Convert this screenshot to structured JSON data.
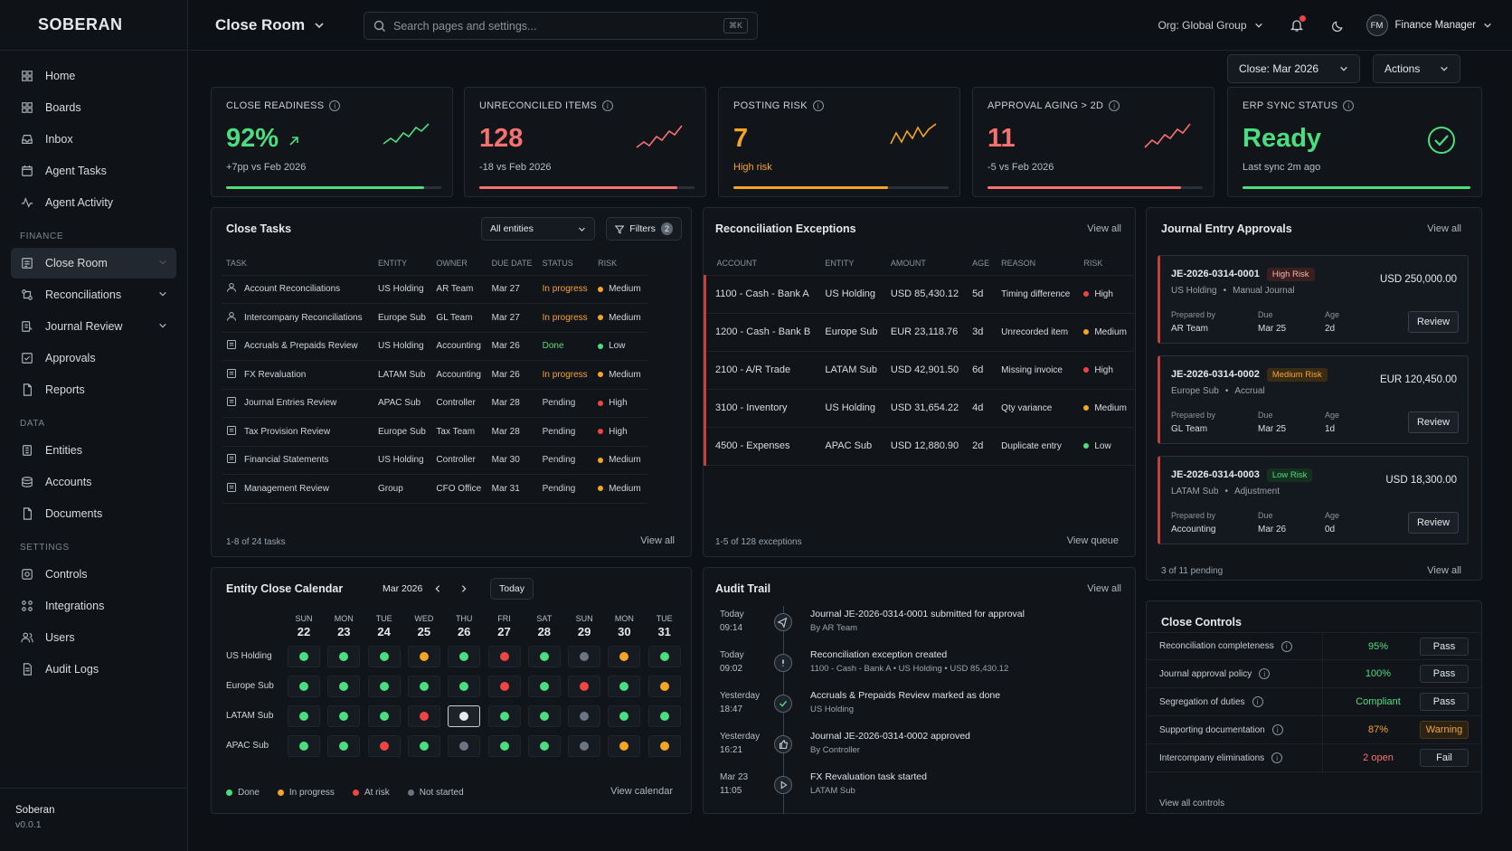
{
  "brand": {
    "name": "SOBERAN",
    "footer_name": "Soberan",
    "version": "v0.0.1"
  },
  "nav": {
    "main": [
      {
        "label": "Home",
        "icon": "grid-icon"
      },
      {
        "label": "Boards",
        "icon": "grid-icon"
      },
      {
        "label": "Inbox",
        "icon": "inbox-icon"
      },
      {
        "label": "Agent Tasks",
        "icon": "calendar-icon"
      },
      {
        "label": "Agent Activity",
        "icon": "activity-icon"
      }
    ],
    "finance_label": "FINANCE",
    "finance": [
      {
        "label": "Close Room"
      },
      {
        "label": "Reconciliations"
      },
      {
        "label": "Journal Review"
      },
      {
        "label": "Approvals"
      },
      {
        "label": "Reports"
      }
    ],
    "data_label": "DATA",
    "data": [
      {
        "label": "Entities"
      },
      {
        "label": "Accounts"
      },
      {
        "label": "Documents"
      }
    ],
    "settings_label": "SETTINGS",
    "settings": [
      {
        "label": "Controls"
      },
      {
        "label": "Integrations"
      },
      {
        "label": "Users"
      },
      {
        "label": "Audit Logs"
      }
    ]
  },
  "header": {
    "title": "Close Room",
    "search_placeholder": "Search pages and settings...",
    "search_kbd": "⌘K",
    "org": "Org: Global Group",
    "user_initials": "FM",
    "user_role": "Finance Manager"
  },
  "toolbar": {
    "close_period": "Close: Mar 2026",
    "actions": "Actions"
  },
  "kpis": [
    {
      "title": "CLOSE READINESS",
      "value": "92%",
      "sub": "+7pp vs Feb 2026",
      "color": "#4ade80",
      "fill": 0.92
    },
    {
      "title": "UNRECONCILED ITEMS",
      "value": "128",
      "sub": "-18 vs Feb 2026",
      "color": "#f87171",
      "fill": 0.92
    },
    {
      "title": "POSTING RISK",
      "value": "7",
      "sub": "High risk",
      "color": "#f5a524",
      "fill": 0.72
    },
    {
      "title": "APPROVAL AGING > 2D",
      "value": "11",
      "sub": "-5 vs Feb 2026",
      "color": "#f87171",
      "fill": 0.9
    },
    {
      "title": "ERP SYNC STATUS",
      "value": "Ready",
      "sub": "Last sync 2m ago",
      "color": "#4ade80",
      "fill": 1.0
    }
  ],
  "tasks": {
    "title": "Close Tasks",
    "entity_filter": "All entities",
    "filters_label": "Filters",
    "filters_count": "2",
    "columns": [
      "TASK",
      "ENTITY",
      "OWNER",
      "DUE DATE",
      "STATUS",
      "RISK"
    ],
    "rows": [
      {
        "task": "Account Reconciliations",
        "entity": "US Holding",
        "owner": "AR Team",
        "due": "Mar 27",
        "status": "In progress",
        "risk": "Medium"
      },
      {
        "task": "Intercompany Reconciliations",
        "entity": "Europe Sub",
        "owner": "GL Team",
        "due": "Mar 27",
        "status": "In progress",
        "risk": "Medium"
      },
      {
        "task": "Accruals & Prepaids Review",
        "entity": "US Holding",
        "owner": "Accounting",
        "due": "Mar 26",
        "status": "Done",
        "risk": "Low"
      },
      {
        "task": "FX Revaluation",
        "entity": "LATAM Sub",
        "owner": "Accounting",
        "due": "Mar 26",
        "status": "In progress",
        "risk": "Medium"
      },
      {
        "task": "Journal Entries Review",
        "entity": "APAC Sub",
        "owner": "Controller",
        "due": "Mar 28",
        "status": "Pending",
        "risk": "High"
      },
      {
        "task": "Tax Provision Review",
        "entity": "Europe Sub",
        "owner": "Tax Team",
        "due": "Mar 28",
        "status": "Pending",
        "risk": "High"
      },
      {
        "task": "Financial Statements",
        "entity": "US Holding",
        "owner": "Controller",
        "due": "Mar 30",
        "status": "Pending",
        "risk": "Medium"
      },
      {
        "task": "Management Review",
        "entity": "Group",
        "owner": "CFO Office",
        "due": "Mar 31",
        "status": "Pending",
        "risk": "Medium"
      }
    ],
    "footer": "1-8 of 24 tasks",
    "view_all": "View all"
  },
  "recon": {
    "title": "Reconciliation Exceptions",
    "view_all": "View all",
    "columns": [
      "ACCOUNT",
      "ENTITY",
      "AMOUNT",
      "AGE",
      "REASON",
      "RISK"
    ],
    "rows": [
      {
        "account": "1100 - Cash - Bank A",
        "entity": "US Holding",
        "amount": "USD 85,430.12",
        "age": "5d",
        "reason": "Timing difference",
        "risk": "High"
      },
      {
        "account": "1200 - Cash - Bank B",
        "entity": "Europe Sub",
        "amount": "EUR 23,118.76",
        "age": "3d",
        "reason": "Unrecorded item",
        "risk": "Medium"
      },
      {
        "account": "2100 - A/R Trade",
        "entity": "LATAM Sub",
        "amount": "USD 42,901.50",
        "age": "6d",
        "reason": "Missing invoice",
        "risk": "High"
      },
      {
        "account": "3100 - Inventory",
        "entity": "US Holding",
        "amount": "USD 31,654.22",
        "age": "4d",
        "reason": "Qty variance",
        "risk": "Medium"
      },
      {
        "account": "4500 - Expenses",
        "entity": "APAC Sub",
        "amount": "USD 12,880.90",
        "age": "2d",
        "reason": "Duplicate entry",
        "risk": "Low"
      }
    ],
    "footer": "1-5 of 128 exceptions",
    "view_queue": "View queue"
  },
  "journal": {
    "title": "Journal Entry Approvals",
    "view_all": "View all",
    "entries": [
      {
        "id": "JE-2026-0314-0001",
        "badge": "High Risk",
        "amount": "USD 250,000.00",
        "entity": "US Holding",
        "type": "Manual Journal",
        "prepared_label": "Prepared by",
        "prepared": "AR Team",
        "due_label": "Due",
        "due": "Mar 25",
        "age_label": "Age",
        "age": "2d",
        "action": "Review"
      },
      {
        "id": "JE-2026-0314-0002",
        "badge": "Medium Risk",
        "amount": "EUR 120,450.00",
        "entity": "Europe Sub",
        "type": "Accrual",
        "prepared_label": "Prepared by",
        "prepared": "GL Team",
        "due_label": "Due",
        "due": "Mar 25",
        "age_label": "Age",
        "age": "1d",
        "action": "Review"
      },
      {
        "id": "JE-2026-0314-0003",
        "badge": "Low Risk",
        "amount": "USD 18,300.00",
        "entity": "LATAM Sub",
        "type": "Adjustment",
        "prepared_label": "Prepared by",
        "prepared": "Accounting",
        "due_label": "Due",
        "due": "Mar 26",
        "age_label": "Age",
        "age": "0d",
        "action": "Review"
      }
    ],
    "footer": "3 of 11 pending"
  },
  "calendar": {
    "title": "Entity Close Calendar",
    "month": "Mar 2026",
    "today": "Today",
    "days": [
      {
        "dow": "SUN",
        "d": "22"
      },
      {
        "dow": "MON",
        "d": "23"
      },
      {
        "dow": "TUE",
        "d": "24"
      },
      {
        "dow": "WED",
        "d": "25"
      },
      {
        "dow": "THU",
        "d": "26"
      },
      {
        "dow": "FRI",
        "d": "27"
      },
      {
        "dow": "SAT",
        "d": "28"
      },
      {
        "dow": "SUN",
        "d": "29"
      },
      {
        "dow": "MON",
        "d": "30"
      },
      {
        "dow": "TUE",
        "d": "31"
      }
    ],
    "rows": [
      {
        "entity": "US Holding",
        "cells": [
          "done",
          "done",
          "done",
          "progress",
          "done",
          "risk",
          "done",
          "not",
          "progress",
          "done"
        ]
      },
      {
        "entity": "Europe Sub",
        "cells": [
          "done",
          "done",
          "done",
          "done",
          "done",
          "risk",
          "done",
          "risk",
          "done",
          "progress"
        ]
      },
      {
        "entity": "LATAM Sub",
        "cells": [
          "done",
          "done",
          "done",
          "risk",
          "today",
          "done",
          "done",
          "not",
          "done",
          "done"
        ]
      },
      {
        "entity": "APAC Sub",
        "cells": [
          "done",
          "done",
          "risk",
          "done",
          "not",
          "done",
          "done",
          "not",
          "progress",
          "progress"
        ]
      }
    ],
    "legend": {
      "done": "Done",
      "progress": "In progress",
      "risk": "At risk",
      "not": "Not started"
    },
    "view_calendar": "View calendar"
  },
  "audit": {
    "title": "Audit Trail",
    "view_all": "View all",
    "items": [
      {
        "day": "Today",
        "time": "09:14",
        "msg": "Journal JE-2026-0314-0001 submitted for approval",
        "sub": "By AR Team",
        "icon": "send-icon"
      },
      {
        "day": "Today",
        "time": "09:02",
        "msg": "Reconciliation exception created",
        "sub": "1100 - Cash - Bank A  •  US Holding  •  USD 85,430.12",
        "icon": "alert-icon"
      },
      {
        "day": "Yesterday",
        "time": "18:47",
        "msg": "Accruals & Prepaids Review marked as done",
        "sub": "US Holding",
        "icon": "check-icon"
      },
      {
        "day": "Yesterday",
        "time": "16:21",
        "msg": "Journal JE-2026-0314-0002 approved",
        "sub": "By Controller",
        "icon": "thumbs-up-icon"
      },
      {
        "day": "Mar 23",
        "time": "11:05",
        "msg": "FX Revaluation task started",
        "sub": "LATAM Sub",
        "icon": "play-icon"
      }
    ]
  },
  "controls": {
    "title": "Close Controls",
    "rows": [
      {
        "name": "Reconciliation completeness",
        "value": "95%",
        "status": "Pass",
        "tone": "green"
      },
      {
        "name": "Journal approval policy",
        "value": "100%",
        "status": "Pass",
        "tone": "green"
      },
      {
        "name": "Segregation of duties",
        "value": "Compliant",
        "status": "Pass",
        "tone": "green"
      },
      {
        "name": "Supporting documentation",
        "value": "87%",
        "status": "Warning",
        "tone": "orange"
      },
      {
        "name": "Intercompany eliminations",
        "value": "2 open",
        "status": "Fail",
        "tone": "red"
      }
    ],
    "view_all": "View all controls"
  }
}
